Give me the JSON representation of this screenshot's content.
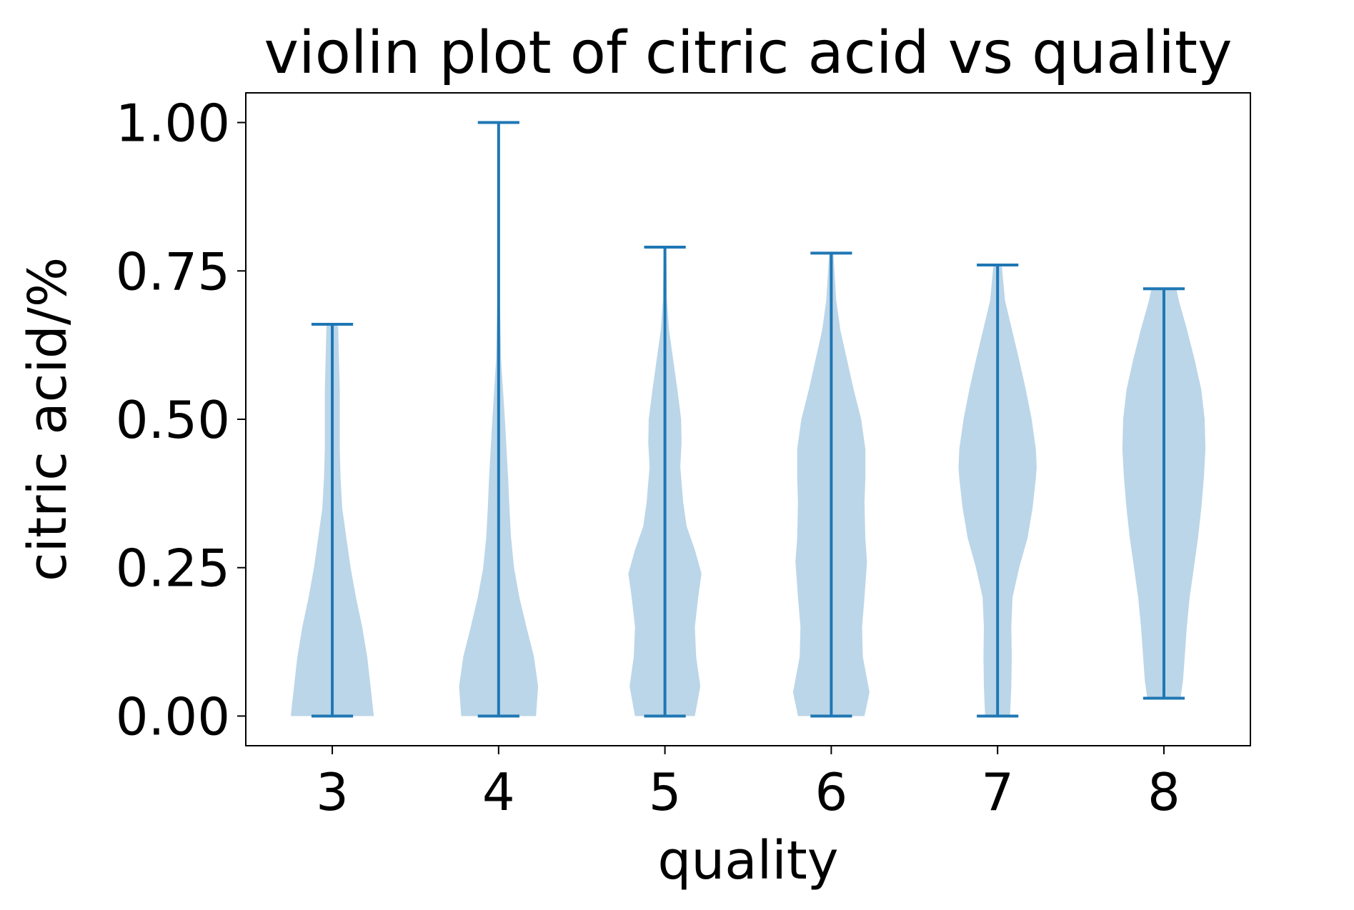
{
  "chart_data": {
    "type": "violin",
    "title": "violin plot of citric acid vs quality",
    "xlabel": "quality",
    "ylabel": "citric acid/%",
    "xlim": [
      2.48,
      8.52
    ],
    "ylim": [
      -0.05,
      1.05
    ],
    "yticks": [
      0.0,
      0.25,
      0.5,
      0.75,
      1.0
    ],
    "ytick_labels": [
      "0.00",
      "0.25",
      "0.50",
      "0.75",
      "1.00"
    ],
    "grid": false,
    "legend": "none",
    "colors": {
      "line": "#1f77b4",
      "body": "#1f77b4",
      "body_opacity": 0.3
    },
    "violins": [
      {
        "category": "3",
        "x": 3,
        "min": 0.0,
        "max": 0.66,
        "width_scale": 0.5,
        "profile": [
          [
            0.0,
            1.0
          ],
          [
            0.05,
            0.92
          ],
          [
            0.1,
            0.84
          ],
          [
            0.15,
            0.72
          ],
          [
            0.2,
            0.57
          ],
          [
            0.25,
            0.44
          ],
          [
            0.3,
            0.34
          ],
          [
            0.35,
            0.24
          ],
          [
            0.4,
            0.2
          ],
          [
            0.45,
            0.18
          ],
          [
            0.5,
            0.18
          ],
          [
            0.55,
            0.18
          ],
          [
            0.6,
            0.16
          ],
          [
            0.66,
            0.14
          ]
        ]
      },
      {
        "category": "4",
        "x": 4,
        "min": 0.0,
        "max": 1.0,
        "width_scale": 0.5,
        "profile": [
          [
            0.0,
            0.9
          ],
          [
            0.05,
            0.95
          ],
          [
            0.1,
            0.85
          ],
          [
            0.15,
            0.67
          ],
          [
            0.2,
            0.5
          ],
          [
            0.25,
            0.37
          ],
          [
            0.3,
            0.3
          ],
          [
            0.35,
            0.26
          ],
          [
            0.4,
            0.23
          ],
          [
            0.5,
            0.15
          ],
          [
            0.6,
            0.06
          ],
          [
            0.7,
            0.03
          ],
          [
            0.8,
            0.015
          ],
          [
            0.9,
            0.008
          ],
          [
            1.0,
            0.004
          ]
        ]
      },
      {
        "category": "5",
        "x": 5,
        "min": 0.0,
        "max": 0.79,
        "width_scale": 0.5,
        "profile": [
          [
            0.0,
            0.72
          ],
          [
            0.05,
            0.85
          ],
          [
            0.1,
            0.75
          ],
          [
            0.15,
            0.72
          ],
          [
            0.2,
            0.8
          ],
          [
            0.24,
            0.88
          ],
          [
            0.28,
            0.72
          ],
          [
            0.32,
            0.52
          ],
          [
            0.36,
            0.44
          ],
          [
            0.42,
            0.37
          ],
          [
            0.46,
            0.4
          ],
          [
            0.5,
            0.39
          ],
          [
            0.55,
            0.3
          ],
          [
            0.6,
            0.2
          ],
          [
            0.65,
            0.1
          ],
          [
            0.7,
            0.05
          ],
          [
            0.79,
            0.03
          ]
        ]
      },
      {
        "category": "6",
        "x": 6,
        "min": 0.0,
        "max": 0.78,
        "width_scale": 0.5,
        "profile": [
          [
            0.0,
            0.8
          ],
          [
            0.04,
            0.92
          ],
          [
            0.1,
            0.76
          ],
          [
            0.15,
            0.74
          ],
          [
            0.2,
            0.8
          ],
          [
            0.26,
            0.86
          ],
          [
            0.3,
            0.82
          ],
          [
            0.36,
            0.8
          ],
          [
            0.4,
            0.82
          ],
          [
            0.45,
            0.82
          ],
          [
            0.5,
            0.72
          ],
          [
            0.55,
            0.54
          ],
          [
            0.6,
            0.38
          ],
          [
            0.65,
            0.22
          ],
          [
            0.7,
            0.12
          ],
          [
            0.78,
            0.05
          ]
        ]
      },
      {
        "category": "7",
        "x": 7,
        "min": 0.0,
        "max": 0.76,
        "width_scale": 0.5,
        "profile": [
          [
            0.0,
            0.3
          ],
          [
            0.05,
            0.33
          ],
          [
            0.1,
            0.34
          ],
          [
            0.15,
            0.33
          ],
          [
            0.2,
            0.36
          ],
          [
            0.25,
            0.52
          ],
          [
            0.3,
            0.72
          ],
          [
            0.35,
            0.84
          ],
          [
            0.4,
            0.92
          ],
          [
            0.42,
            0.94
          ],
          [
            0.45,
            0.92
          ],
          [
            0.5,
            0.82
          ],
          [
            0.55,
            0.68
          ],
          [
            0.6,
            0.52
          ],
          [
            0.65,
            0.35
          ],
          [
            0.7,
            0.18
          ],
          [
            0.76,
            0.1
          ]
        ]
      },
      {
        "category": "8",
        "x": 8,
        "min": 0.03,
        "max": 0.72,
        "width_scale": 0.5,
        "profile": [
          [
            0.03,
            0.4
          ],
          [
            0.06,
            0.46
          ],
          [
            0.1,
            0.5
          ],
          [
            0.15,
            0.55
          ],
          [
            0.2,
            0.62
          ],
          [
            0.25,
            0.72
          ],
          [
            0.3,
            0.82
          ],
          [
            0.35,
            0.9
          ],
          [
            0.4,
            0.96
          ],
          [
            0.45,
            1.0
          ],
          [
            0.5,
            0.98
          ],
          [
            0.55,
            0.9
          ],
          [
            0.6,
            0.74
          ],
          [
            0.65,
            0.56
          ],
          [
            0.7,
            0.36
          ],
          [
            0.72,
            0.3
          ]
        ]
      }
    ]
  }
}
